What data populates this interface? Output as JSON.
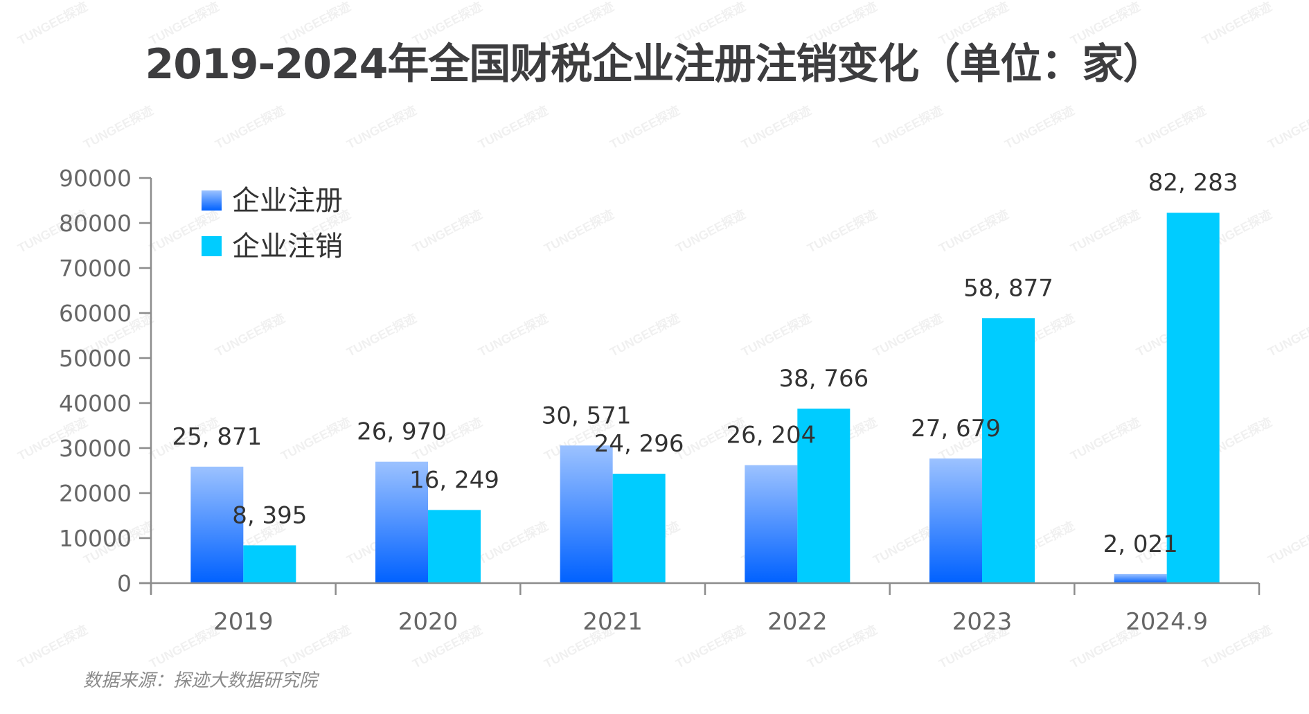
{
  "title": "2019-2024年全国财税企业注册注销变化（单位：家）",
  "source": "数据来源：探迹大数据研究院",
  "watermark": "TUNGEE探迹",
  "colors": {
    "register_top": "#9cc2ff",
    "register_bottom": "#0061ff",
    "cancel": "#00ccff",
    "axis": "#8c8c8c",
    "tick_text": "#666666",
    "label_text": "#333333"
  },
  "chart_data": {
    "type": "bar",
    "title": "2019-2024年全国财税企业注册注销变化（单位：家）",
    "xlabel": "",
    "ylabel": "",
    "categories": [
      "2019",
      "2020",
      "2021",
      "2022",
      "2023",
      "2024.9"
    ],
    "series": [
      {
        "name": "企业注册",
        "values": [
          25871,
          26970,
          30571,
          26204,
          27679,
          2021
        ],
        "labels": [
          "25, 871",
          "26, 970",
          "30, 571",
          "26, 204",
          "27, 679",
          "2, 021"
        ]
      },
      {
        "name": "企业注销",
        "values": [
          8395,
          16249,
          24296,
          38766,
          58877,
          82283
        ],
        "labels": [
          "8, 395",
          "16, 249",
          "24, 296",
          "38, 766",
          "58, 877",
          "82, 283"
        ]
      }
    ],
    "ylim": [
      0,
      90000
    ],
    "yticks": [
      "0",
      "10000",
      "20000",
      "30000",
      "40000",
      "50000",
      "60000",
      "70000",
      "80000",
      "90000"
    ],
    "grid": false,
    "legend": "top-left"
  }
}
